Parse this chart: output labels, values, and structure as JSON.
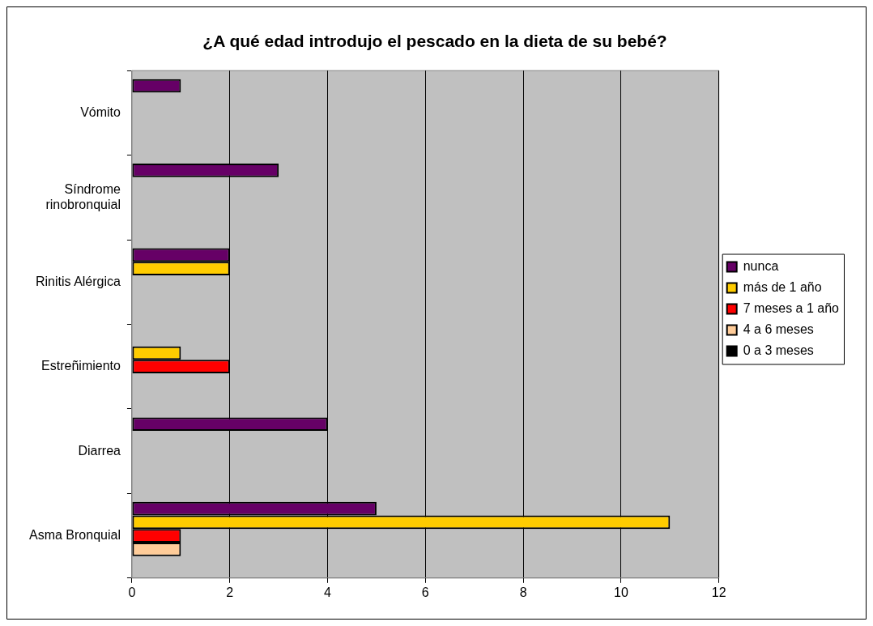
{
  "chart_data": {
    "type": "bar",
    "orientation": "horizontal",
    "title": "¿A qué edad introdujo el pescado en la dieta de su bebé?",
    "categories": [
      "Vómito",
      "Síndrome rinobronquial",
      "Rinitis Alérgica",
      "Estreñimiento",
      "Diarrea",
      "Asma Bronquial"
    ],
    "series": [
      {
        "name": "nunca",
        "color": "#660066",
        "values": [
          1,
          3,
          2,
          null,
          4,
          5
        ]
      },
      {
        "name": "más de 1 año",
        "color": "#ffcc00",
        "values": [
          null,
          null,
          2,
          1,
          null,
          11
        ]
      },
      {
        "name": "7 meses a 1 año",
        "color": "#ff0000",
        "values": [
          null,
          null,
          null,
          2,
          null,
          1
        ]
      },
      {
        "name": "4 a 6 meses",
        "color": "#ffcc99",
        "values": [
          null,
          null,
          null,
          null,
          null,
          1
        ]
      },
      {
        "name": "0 a 3 meses",
        "color": "#000000",
        "values": [
          null,
          null,
          null,
          null,
          null,
          null
        ]
      }
    ],
    "xlim": [
      0,
      12
    ],
    "xticks": [
      0,
      2,
      4,
      6,
      8,
      10,
      12
    ],
    "grid": "x",
    "legend": "right"
  }
}
